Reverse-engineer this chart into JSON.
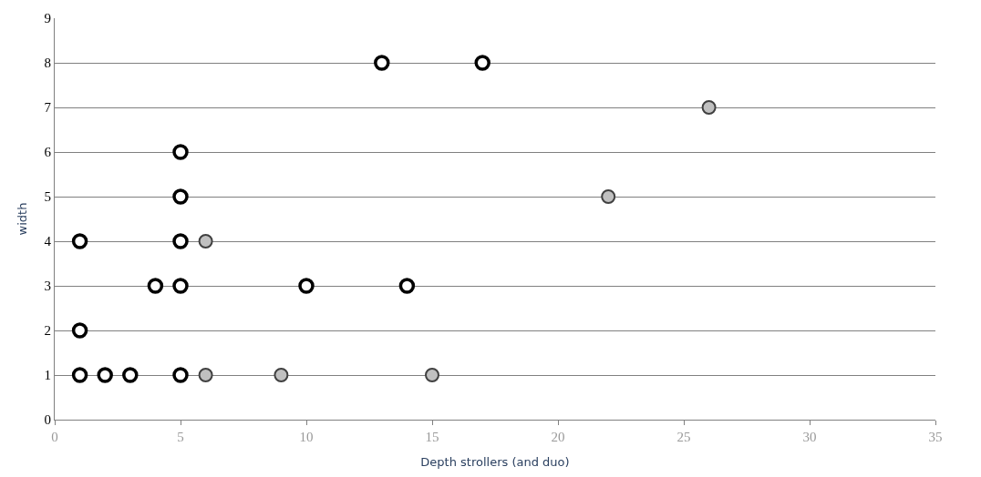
{
  "chart_data": {
    "type": "scatter",
    "xlabel": "Depth strollers (and duo)",
    "ylabel": "width",
    "series": [
      {
        "color": "#000000",
        "x": [
          1,
          5,
          5,
          5,
          13,
          17,
          4,
          5,
          10,
          14,
          1,
          1,
          2,
          3,
          5
        ],
        "values": [
          4,
          4,
          5,
          6,
          8,
          8,
          3,
          3,
          3,
          3,
          2,
          1,
          1,
          1,
          1
        ]
      },
      {
        "color": "#c0c0c0",
        "x": [
          6,
          26,
          22,
          6,
          9,
          15
        ],
        "values": [
          4,
          7,
          5,
          1,
          1,
          1
        ]
      }
    ],
    "xlim": [
      0,
      35
    ],
    "xticks": [
      0,
      5,
      10,
      15,
      20,
      25,
      30,
      35
    ],
    "ylim": [
      0,
      9
    ],
    "yticks": [
      0,
      1,
      2,
      3,
      4,
      5,
      6,
      7,
      8,
      9
    ],
    "grid": "y",
    "marker": "circle"
  }
}
